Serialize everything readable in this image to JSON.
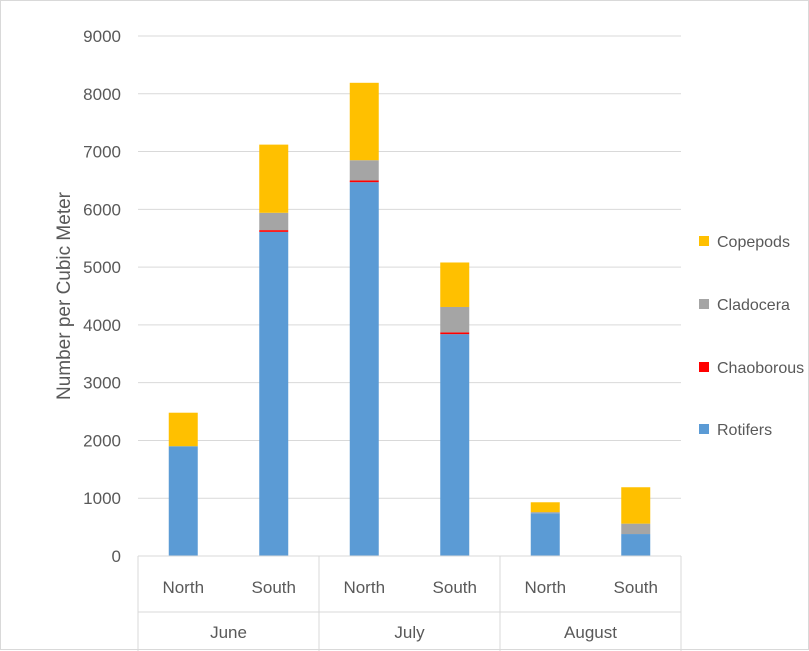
{
  "chart_data": {
    "type": "bar",
    "stacked": true,
    "ylabel": "Number per Cubic Meter",
    "ylim": [
      0,
      9000
    ],
    "yticks": [
      0,
      1000,
      2000,
      3000,
      4000,
      5000,
      6000,
      7000,
      8000,
      9000
    ],
    "grid": true,
    "legend_position": "right",
    "groups": [
      {
        "label": "June",
        "categories": [
          "North",
          "South"
        ]
      },
      {
        "label": "July",
        "categories": [
          "North",
          "South"
        ]
      },
      {
        "label": "August",
        "categories": [
          "North",
          "South"
        ]
      }
    ],
    "categories": [
      "North",
      "South",
      "North",
      "South",
      "North",
      "South"
    ],
    "series": [
      {
        "name": "Rotifers",
        "color": "#5b9bd5",
        "values": [
          1900,
          5610,
          6470,
          3840,
          740,
          380
        ]
      },
      {
        "name": "Chaoborous",
        "color": "#ff0000",
        "values": [
          0,
          30,
          30,
          30,
          0,
          0
        ]
      },
      {
        "name": "Cladocera",
        "color": "#a5a5a5",
        "values": [
          0,
          300,
          350,
          440,
          20,
          180
        ]
      },
      {
        "name": "Copepods",
        "color": "#ffc000",
        "values": [
          580,
          1180,
          1340,
          770,
          170,
          630
        ]
      }
    ]
  }
}
